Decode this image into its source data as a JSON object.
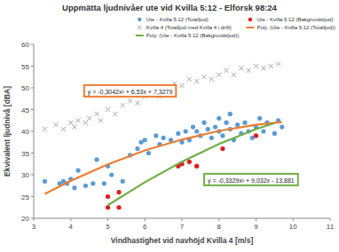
{
  "chart_data": {
    "type": "scatter",
    "title": "Uppmätta ljudnivåer ute vid Kvilla 5:12 - Elforsk 98:24",
    "x_label": "Vindhastighet vid navhöjd Kvilla 4 [m/s]",
    "y_label": "Ekvivalent ljudnivå [dBA]",
    "xlim": [
      3,
      11
    ],
    "xticks": [
      3,
      4,
      5,
      6,
      7,
      8,
      9,
      10,
      11
    ],
    "ylim": [
      20,
      60
    ],
    "yticks": [
      20,
      25,
      30,
      35,
      40,
      45,
      50,
      55,
      60
    ],
    "grid": false,
    "legend": "top-right",
    "series": [
      {
        "name": "Ute - Kvilla 5:12 (Totalljud)",
        "type": "scatter",
        "color": "#5b9bd5",
        "marker": "circle",
        "x": [
          3.3,
          3.7,
          3.8,
          3.9,
          4.0,
          4.1,
          4.2,
          4.4,
          4.6,
          4.7,
          4.9,
          5.0,
          5.1,
          5.4,
          5.6,
          5.8,
          5.9,
          6.0,
          6.1,
          6.3,
          6.4,
          6.5,
          6.7,
          6.9,
          7.0,
          7.1,
          7.2,
          7.3,
          7.4,
          7.5,
          7.6,
          7.7,
          7.8,
          7.9,
          8.0,
          8.0,
          8.1,
          8.2,
          8.3,
          8.3,
          8.4,
          8.5,
          8.6,
          8.7,
          8.8,
          8.9,
          9.0,
          9.1,
          9.2,
          9.3,
          9.5,
          9.6,
          9.7
        ],
        "values": [
          28.5,
          28,
          28.5,
          28,
          29,
          27,
          31,
          27.5,
          28,
          33.5,
          28,
          32,
          30,
          28.5,
          34.5,
          36,
          37.5,
          38,
          35,
          39,
          37,
          38.5,
          38,
          39.5,
          37.5,
          40,
          38,
          41,
          40,
          39,
          42,
          40.5,
          38.5,
          41,
          43,
          40,
          39,
          42,
          44,
          40.5,
          38,
          41.5,
          39.5,
          42,
          40,
          38.5,
          41,
          43,
          40,
          42,
          39.5,
          42.5,
          41
        ]
      },
      {
        "name": "Ute - Kvilla 5:12 (Bakgrundsljud)",
        "type": "scatter",
        "color": "#e31a1c",
        "marker": "circle",
        "x": [
          5.0,
          5.0,
          5.3,
          5.3,
          6.9,
          7.0,
          7.2,
          7.4,
          8.1,
          9.0
        ],
        "values": [
          25,
          22.5,
          26,
          22.5,
          32,
          32.5,
          33,
          32,
          36,
          39
        ]
      },
      {
        "name": "Kvilla 4 (Totalljud med Kvilla 4 i drift)",
        "type": "scatter",
        "color": "#a6a6a6",
        "marker": "x",
        "x": [
          3.3,
          3.6,
          3.8,
          4.0,
          4.1,
          4.2,
          4.4,
          4.5,
          4.7,
          4.8,
          5.0,
          5.2,
          5.4,
          5.6,
          5.8,
          6.0,
          6.2,
          6.4,
          6.6,
          6.8,
          7.0,
          7.2,
          7.4,
          7.6,
          7.8,
          8.0,
          8.2,
          8.4,
          8.6,
          8.8,
          9.0,
          9.2,
          9.4,
          9.6
        ],
        "values": [
          40.5,
          41.5,
          40.5,
          42,
          41,
          42.5,
          42,
          43,
          44,
          42.5,
          45,
          44,
          46,
          47,
          46.5,
          48,
          49,
          48,
          50,
          51,
          50.5,
          52,
          51.5,
          52.5,
          52,
          53,
          54,
          53,
          54.5,
          54,
          55,
          54.5,
          55,
          55.5
        ]
      },
      {
        "name": "Poly. (Ute - Kvilla 5:12 (Totalljud))",
        "type": "line",
        "color": "#ed7d31",
        "line_style": "solid",
        "x": [
          3.3,
          4,
          5,
          6,
          7,
          8,
          9,
          9.7
        ],
        "values": [
          25.6,
          28.6,
          32.4,
          35.6,
          38.1,
          40.1,
          41.5,
          42.1
        ]
      },
      {
        "name": "Poly. (Ute - Kvilla 5:12 (Bakgrundsljud))",
        "type": "line",
        "color": "#70ad47",
        "line_style": "solid",
        "x": [
          5,
          6,
          7,
          8,
          9,
          9.5
        ],
        "values": [
          23,
          28.3,
          33,
          37.1,
          40.5,
          41.9
        ]
      }
    ],
    "annotations": [
      {
        "text": "y = -0,3042x² + 6,53x + 7,3279",
        "color": "#ed7d31"
      },
      {
        "text": "y = -0,3329x² + 9,032x - 13,881",
        "color": "#70ad47"
      }
    ]
  }
}
